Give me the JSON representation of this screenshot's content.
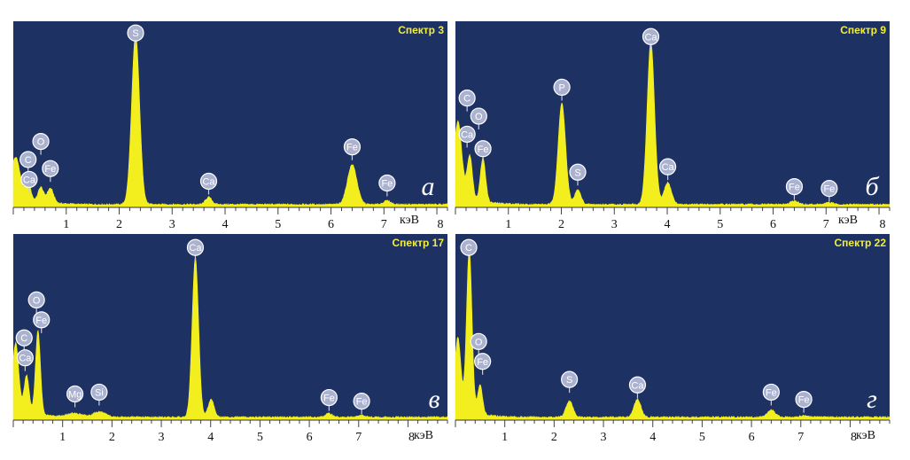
{
  "chart_data": [
    {
      "type": "area",
      "title": "Спектр 3",
      "panel_letter": "а",
      "xlabel": "кэВ",
      "xlim": [
        0,
        8.2
      ],
      "ylim": [
        0,
        100
      ],
      "x_ticks": [
        1,
        2,
        3,
        4,
        5,
        6,
        7,
        8
      ],
      "peaks": [
        {
          "x": 0.05,
          "h": 20,
          "w": 0.08
        },
        {
          "x": 0.28,
          "h": 9,
          "w": 0.05
        },
        {
          "x": 0.52,
          "h": 8,
          "w": 0.05
        },
        {
          "x": 0.7,
          "h": 8,
          "w": 0.06
        },
        {
          "x": 2.31,
          "h": 94,
          "w": 0.075
        },
        {
          "x": 3.69,
          "h": 4,
          "w": 0.06
        },
        {
          "x": 6.4,
          "h": 22,
          "w": 0.09
        },
        {
          "x": 7.06,
          "h": 2,
          "w": 0.07
        }
      ],
      "labels": [
        {
          "element": "C",
          "x": 0.28,
          "y": 25
        },
        {
          "element": "O",
          "x": 0.52,
          "y": 35
        },
        {
          "element": "Ca",
          "x": 0.3,
          "y": 14
        },
        {
          "element": "Fe",
          "x": 0.7,
          "y": 20
        },
        {
          "element": "S",
          "x": 2.31,
          "y": 95
        },
        {
          "element": "Ca",
          "x": 3.69,
          "y": 13
        },
        {
          "element": "Fe",
          "x": 6.4,
          "y": 32
        },
        {
          "element": "Fe",
          "x": 7.06,
          "y": 12
        }
      ]
    },
    {
      "type": "area",
      "title": "Спектр 9",
      "panel_letter": "б",
      "xlabel": "кэВ",
      "xlim": [
        0,
        8.2
      ],
      "ylim": [
        0,
        100
      ],
      "x_ticks": [
        1,
        2,
        3,
        4,
        5,
        6,
        7,
        8
      ],
      "peaks": [
        {
          "x": 0.05,
          "h": 40,
          "w": 0.07
        },
        {
          "x": 0.27,
          "h": 24,
          "w": 0.05
        },
        {
          "x": 0.52,
          "h": 24,
          "w": 0.05
        },
        {
          "x": 2.01,
          "h": 56,
          "w": 0.07
        },
        {
          "x": 2.31,
          "h": 8,
          "w": 0.06
        },
        {
          "x": 3.69,
          "h": 90,
          "w": 0.07
        },
        {
          "x": 4.01,
          "h": 12,
          "w": 0.07
        },
        {
          "x": 6.4,
          "h": 2,
          "w": 0.07
        },
        {
          "x": 7.06,
          "h": 1,
          "w": 0.07
        }
      ],
      "labels": [
        {
          "element": "C",
          "x": 0.22,
          "y": 59
        },
        {
          "element": "O",
          "x": 0.44,
          "y": 49
        },
        {
          "element": "Ca",
          "x": 0.22,
          "y": 39
        },
        {
          "element": "Fe",
          "x": 0.52,
          "y": 31
        },
        {
          "element": "P",
          "x": 2.01,
          "y": 65
        },
        {
          "element": "S",
          "x": 2.31,
          "y": 18
        },
        {
          "element": "Ca",
          "x": 3.69,
          "y": 93
        },
        {
          "element": "Ca",
          "x": 4.01,
          "y": 21
        },
        {
          "element": "Fe",
          "x": 6.4,
          "y": 10
        },
        {
          "element": "Fe",
          "x": 7.06,
          "y": 9
        }
      ]
    },
    {
      "type": "area",
      "title": "Спектр 17",
      "panel_letter": "в",
      "xlabel": "кэВ",
      "xlim": [
        0,
        8.8
      ],
      "ylim": [
        0,
        100
      ],
      "x_ticks": [
        1,
        2,
        3,
        4,
        5,
        6,
        7,
        8
      ],
      "peaks": [
        {
          "x": 0.05,
          "h": 35,
          "w": 0.06
        },
        {
          "x": 0.27,
          "h": 20,
          "w": 0.05
        },
        {
          "x": 0.5,
          "h": 46,
          "w": 0.05
        },
        {
          "x": 1.25,
          "h": 2,
          "w": 0.15
        },
        {
          "x": 1.74,
          "h": 3,
          "w": 0.12
        },
        {
          "x": 3.69,
          "h": 88,
          "w": 0.065
        },
        {
          "x": 4.01,
          "h": 10,
          "w": 0.06
        },
        {
          "x": 6.4,
          "h": 2,
          "w": 0.07
        },
        {
          "x": 7.06,
          "h": 1,
          "w": 0.07
        }
      ],
      "labels": [
        {
          "element": "O",
          "x": 0.47,
          "y": 65
        },
        {
          "element": "Fe",
          "x": 0.57,
          "y": 54
        },
        {
          "element": "C",
          "x": 0.22,
          "y": 44
        },
        {
          "element": "Ca",
          "x": 0.24,
          "y": 33
        },
        {
          "element": "Mg",
          "x": 1.25,
          "y": 13
        },
        {
          "element": "Si",
          "x": 1.74,
          "y": 14
        },
        {
          "element": "Ca",
          "x": 3.69,
          "y": 94
        },
        {
          "element": "Fe",
          "x": 6.4,
          "y": 11
        },
        {
          "element": "Fe",
          "x": 7.06,
          "y": 9
        }
      ]
    },
    {
      "type": "area",
      "title": "Спектр 22",
      "panel_letter": "г",
      "xlabel": "кэВ",
      "xlim": [
        0,
        8.8
      ],
      "ylim": [
        0,
        100
      ],
      "x_ticks": [
        1,
        2,
        3,
        4,
        5,
        6,
        7,
        8
      ],
      "peaks": [
        {
          "x": 0.05,
          "h": 38,
          "w": 0.06
        },
        {
          "x": 0.28,
          "h": 90,
          "w": 0.055
        },
        {
          "x": 0.5,
          "h": 16,
          "w": 0.05
        },
        {
          "x": 2.31,
          "h": 9,
          "w": 0.07
        },
        {
          "x": 3.69,
          "h": 10,
          "w": 0.07
        },
        {
          "x": 6.4,
          "h": 4,
          "w": 0.08
        },
        {
          "x": 7.06,
          "h": 1,
          "w": 0.07
        }
      ],
      "labels": [
        {
          "element": "C",
          "x": 0.27,
          "y": 94
        },
        {
          "element": "O",
          "x": 0.47,
          "y": 42
        },
        {
          "element": "Fe",
          "x": 0.55,
          "y": 31
        },
        {
          "element": "S",
          "x": 2.31,
          "y": 21
        },
        {
          "element": "Ca",
          "x": 3.69,
          "y": 18
        },
        {
          "element": "Fe",
          "x": 6.4,
          "y": 14
        },
        {
          "element": "Fe",
          "x": 7.06,
          "y": 10
        }
      ]
    }
  ]
}
